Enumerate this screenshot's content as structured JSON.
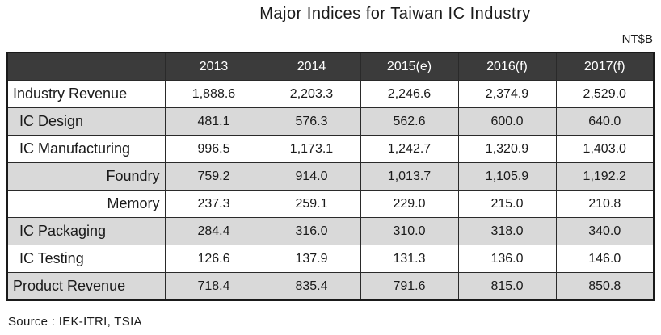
{
  "chart_data": {
    "type": "table",
    "title": "Major Indices for Taiwan IC Industry",
    "unit": "NT$B",
    "columns": [
      "2013",
      "2014",
      "2015(e)",
      "2016(f)",
      "2017(f)"
    ],
    "rows": [
      {
        "label": "Industry Revenue",
        "level": 0,
        "values": [
          "1,888.6",
          "2,203.3",
          "2,246.6",
          "2,374.9",
          "2,529.0"
        ]
      },
      {
        "label": "IC Design",
        "level": 1,
        "values": [
          "481.1",
          "576.3",
          "562.6",
          "600.0",
          "640.0"
        ]
      },
      {
        "label": "IC Manufacturing",
        "level": 1,
        "values": [
          "996.5",
          "1,173.1",
          "1,242.7",
          "1,320.9",
          "1,403.0"
        ]
      },
      {
        "label": "Foundry",
        "level": 2,
        "values": [
          "759.2",
          "914.0",
          "1,013.7",
          "1,105.9",
          "1,192.2"
        ]
      },
      {
        "label": "Memory",
        "level": 2,
        "values": [
          "237.3",
          "259.1",
          "229.0",
          "215.0",
          "210.8"
        ]
      },
      {
        "label": "IC Packaging",
        "level": 1,
        "values": [
          "284.4",
          "316.0",
          "310.0",
          "318.0",
          "340.0"
        ]
      },
      {
        "label": "IC Testing",
        "level": 1,
        "values": [
          "126.6",
          "137.9",
          "131.3",
          "136.0",
          "146.0"
        ]
      },
      {
        "label": "Product Revenue",
        "level": 0,
        "values": [
          "718.4",
          "835.4",
          "791.6",
          "815.0",
          "850.8"
        ]
      }
    ],
    "source": "Source : IEK-ITRI, TSIA",
    "header_color": "#3b3b3b",
    "shade_color": "#d9d9d9"
  }
}
